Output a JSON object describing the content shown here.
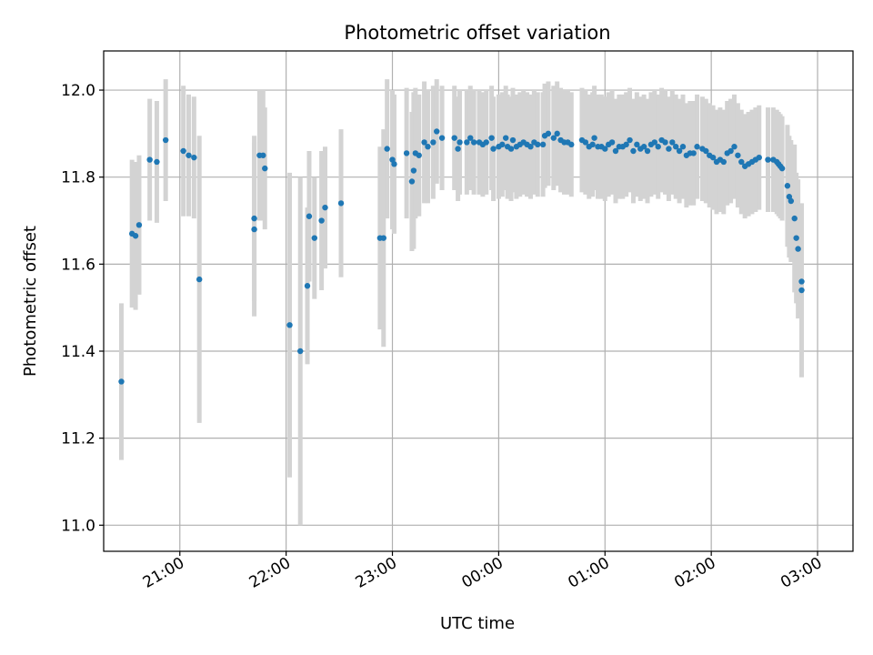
{
  "chart_data": {
    "type": "scatter",
    "title": "Photometric offset variation",
    "xlabel": "UTC time",
    "ylabel": "Photometric offset",
    "x_ticks": [
      "21:00",
      "22:00",
      "23:00",
      "00:00",
      "01:00",
      "02:00",
      "03:00"
    ],
    "x_tick_hours": [
      21,
      22,
      23,
      24,
      25,
      26,
      27
    ],
    "y_ticks": [
      "11.0",
      "11.2",
      "11.4",
      "11.6",
      "11.8",
      "12.0"
    ],
    "y_tick_values": [
      11.0,
      11.2,
      11.4,
      11.6,
      11.8,
      12.0
    ],
    "xlim": [
      "20:17",
      "03:20"
    ],
    "ylim": [
      10.94,
      12.09
    ],
    "grid": true,
    "colors": {
      "point": "#1f77b4",
      "errorbar": "#d3d3d3",
      "grid": "#b0b0b0"
    },
    "points": [
      {
        "t": "20:27",
        "y": 11.33,
        "e": 0.18
      },
      {
        "t": "20:33",
        "y": 11.67,
        "e": 0.17
      },
      {
        "t": "20:35",
        "y": 11.665,
        "e": 0.17
      },
      {
        "t": "20:37",
        "y": 11.69,
        "e": 0.16
      },
      {
        "t": "20:43",
        "y": 11.84,
        "e": 0.14
      },
      {
        "t": "20:47",
        "y": 11.835,
        "e": 0.14
      },
      {
        "t": "20:52",
        "y": 11.885,
        "e": 0.14
      },
      {
        "t": "21:02",
        "y": 11.86,
        "e": 0.15
      },
      {
        "t": "21:05",
        "y": 11.85,
        "e": 0.14
      },
      {
        "t": "21:08",
        "y": 11.845,
        "e": 0.14
      },
      {
        "t": "21:11",
        "y": 11.565,
        "e": 0.33
      },
      {
        "t": "21:42",
        "y": 11.68,
        "e": 0.2
      },
      {
        "t": "21:42",
        "y": 11.705,
        "e": 0.19
      },
      {
        "t": "21:45",
        "y": 11.85,
        "e": 0.15
      },
      {
        "t": "21:47",
        "y": 11.85,
        "e": 0.15
      },
      {
        "t": "21:48",
        "y": 11.82,
        "e": 0.14
      },
      {
        "t": "22:02",
        "y": 11.46,
        "e": 0.35
      },
      {
        "t": "22:08",
        "y": 11.4,
        "e": 0.4
      },
      {
        "t": "22:12",
        "y": 11.55,
        "e": 0.18
      },
      {
        "t": "22:13",
        "y": 11.71,
        "e": 0.15
      },
      {
        "t": "22:16",
        "y": 11.66,
        "e": 0.14
      },
      {
        "t": "22:20",
        "y": 11.7,
        "e": 0.16
      },
      {
        "t": "22:22",
        "y": 11.73,
        "e": 0.14
      },
      {
        "t": "22:31",
        "y": 11.74,
        "e": 0.17
      },
      {
        "t": "22:53",
        "y": 11.66,
        "e": 0.21
      },
      {
        "t": "22:55",
        "y": 11.66,
        "e": 0.25
      },
      {
        "t": "22:57",
        "y": 11.865,
        "e": 0.16
      },
      {
        "t": "23:00",
        "y": 11.84,
        "e": 0.16
      },
      {
        "t": "23:01",
        "y": 11.83,
        "e": 0.16
      },
      {
        "t": "23:08",
        "y": 11.855,
        "e": 0.15
      },
      {
        "t": "23:11",
        "y": 11.79,
        "e": 0.16
      },
      {
        "t": "23:12",
        "y": 11.815,
        "e": 0.18
      },
      {
        "t": "23:13",
        "y": 11.855,
        "e": 0.15
      },
      {
        "t": "23:15",
        "y": 11.85,
        "e": 0.14
      },
      {
        "t": "23:18",
        "y": 11.88,
        "e": 0.14
      },
      {
        "t": "23:20",
        "y": 11.87,
        "e": 0.13
      },
      {
        "t": "23:23",
        "y": 11.88,
        "e": 0.13
      },
      {
        "t": "23:25",
        "y": 11.905,
        "e": 0.12
      },
      {
        "t": "23:28",
        "y": 11.89,
        "e": 0.12
      },
      {
        "t": "23:35",
        "y": 11.89,
        "e": 0.12
      },
      {
        "t": "23:37",
        "y": 11.865,
        "e": 0.12
      },
      {
        "t": "23:38",
        "y": 11.88,
        "e": 0.12
      },
      {
        "t": "23:42",
        "y": 11.88,
        "e": 0.12
      },
      {
        "t": "23:44",
        "y": 11.89,
        "e": 0.12
      },
      {
        "t": "23:46",
        "y": 11.88,
        "e": 0.12
      },
      {
        "t": "23:49",
        "y": 11.88,
        "e": 0.12
      },
      {
        "t": "23:51",
        "y": 11.875,
        "e": 0.12
      },
      {
        "t": "23:53",
        "y": 11.88,
        "e": 0.12
      },
      {
        "t": "23:56",
        "y": 11.89,
        "e": 0.12
      },
      {
        "t": "23:57",
        "y": 11.865,
        "e": 0.12
      },
      {
        "t": "00:00",
        "y": 11.87,
        "e": 0.12
      },
      {
        "t": "00:02",
        "y": 11.875,
        "e": 0.12
      },
      {
        "t": "00:04",
        "y": 11.89,
        "e": 0.12
      },
      {
        "t": "00:05",
        "y": 11.87,
        "e": 0.12
      },
      {
        "t": "00:07",
        "y": 11.865,
        "e": 0.12
      },
      {
        "t": "00:08",
        "y": 11.885,
        "e": 0.12
      },
      {
        "t": "00:10",
        "y": 11.87,
        "e": 0.12
      },
      {
        "t": "00:12",
        "y": 11.875,
        "e": 0.12
      },
      {
        "t": "00:14",
        "y": 11.88,
        "e": 0.12
      },
      {
        "t": "00:16",
        "y": 11.875,
        "e": 0.12
      },
      {
        "t": "00:18",
        "y": 11.87,
        "e": 0.12
      },
      {
        "t": "00:20",
        "y": 11.88,
        "e": 0.12
      },
      {
        "t": "00:22",
        "y": 11.875,
        "e": 0.12
      },
      {
        "t": "00:25",
        "y": 11.875,
        "e": 0.12
      },
      {
        "t": "00:26",
        "y": 11.895,
        "e": 0.12
      },
      {
        "t": "00:28",
        "y": 11.9,
        "e": 0.12
      },
      {
        "t": "00:31",
        "y": 11.89,
        "e": 0.12
      },
      {
        "t": "00:33",
        "y": 11.9,
        "e": 0.12
      },
      {
        "t": "00:35",
        "y": 11.885,
        "e": 0.12
      },
      {
        "t": "00:37",
        "y": 11.88,
        "e": 0.12
      },
      {
        "t": "00:39",
        "y": 11.88,
        "e": 0.12
      },
      {
        "t": "00:41",
        "y": 11.875,
        "e": 0.12
      },
      {
        "t": "00:47",
        "y": 11.885,
        "e": 0.12
      },
      {
        "t": "00:49",
        "y": 11.88,
        "e": 0.12
      },
      {
        "t": "00:51",
        "y": 11.87,
        "e": 0.12
      },
      {
        "t": "00:53",
        "y": 11.875,
        "e": 0.12
      },
      {
        "t": "00:54",
        "y": 11.89,
        "e": 0.12
      },
      {
        "t": "00:56",
        "y": 11.87,
        "e": 0.12
      },
      {
        "t": "00:58",
        "y": 11.87,
        "e": 0.12
      },
      {
        "t": "01:00",
        "y": 11.865,
        "e": 0.12
      },
      {
        "t": "01:02",
        "y": 11.875,
        "e": 0.12
      },
      {
        "t": "01:04",
        "y": 11.88,
        "e": 0.12
      },
      {
        "t": "01:06",
        "y": 11.86,
        "e": 0.12
      },
      {
        "t": "01:08",
        "y": 11.87,
        "e": 0.12
      },
      {
        "t": "01:10",
        "y": 11.87,
        "e": 0.12
      },
      {
        "t": "01:12",
        "y": 11.875,
        "e": 0.12
      },
      {
        "t": "01:14",
        "y": 11.885,
        "e": 0.12
      },
      {
        "t": "01:16",
        "y": 11.86,
        "e": 0.12
      },
      {
        "t": "01:18",
        "y": 11.875,
        "e": 0.12
      },
      {
        "t": "01:20",
        "y": 11.865,
        "e": 0.12
      },
      {
        "t": "01:22",
        "y": 11.87,
        "e": 0.12
      },
      {
        "t": "01:24",
        "y": 11.86,
        "e": 0.12
      },
      {
        "t": "01:26",
        "y": 11.875,
        "e": 0.12
      },
      {
        "t": "01:28",
        "y": 11.88,
        "e": 0.12
      },
      {
        "t": "01:30",
        "y": 11.87,
        "e": 0.12
      },
      {
        "t": "01:32",
        "y": 11.885,
        "e": 0.12
      },
      {
        "t": "01:34",
        "y": 11.88,
        "e": 0.12
      },
      {
        "t": "01:36",
        "y": 11.865,
        "e": 0.12
      },
      {
        "t": "01:38",
        "y": 11.88,
        "e": 0.12
      },
      {
        "t": "01:40",
        "y": 11.87,
        "e": 0.12
      },
      {
        "t": "01:42",
        "y": 11.86,
        "e": 0.12
      },
      {
        "t": "01:44",
        "y": 11.87,
        "e": 0.12
      },
      {
        "t": "01:46",
        "y": 11.85,
        "e": 0.12
      },
      {
        "t": "01:48",
        "y": 11.855,
        "e": 0.12
      },
      {
        "t": "01:50",
        "y": 11.855,
        "e": 0.12
      },
      {
        "t": "01:52",
        "y": 11.87,
        "e": 0.12
      },
      {
        "t": "01:55",
        "y": 11.865,
        "e": 0.12
      },
      {
        "t": "01:57",
        "y": 11.86,
        "e": 0.12
      },
      {
        "t": "01:59",
        "y": 11.85,
        "e": 0.12
      },
      {
        "t": "02:01",
        "y": 11.845,
        "e": 0.12
      },
      {
        "t": "02:03",
        "y": 11.835,
        "e": 0.12
      },
      {
        "t": "02:05",
        "y": 11.84,
        "e": 0.12
      },
      {
        "t": "02:07",
        "y": 11.835,
        "e": 0.12
      },
      {
        "t": "02:09",
        "y": 11.855,
        "e": 0.12
      },
      {
        "t": "02:11",
        "y": 11.86,
        "e": 0.12
      },
      {
        "t": "02:13",
        "y": 11.87,
        "e": 0.12
      },
      {
        "t": "02:15",
        "y": 11.85,
        "e": 0.12
      },
      {
        "t": "02:17",
        "y": 11.835,
        "e": 0.12
      },
      {
        "t": "02:19",
        "y": 11.825,
        "e": 0.12
      },
      {
        "t": "02:21",
        "y": 11.83,
        "e": 0.12
      },
      {
        "t": "02:23",
        "y": 11.835,
        "e": 0.12
      },
      {
        "t": "02:25",
        "y": 11.84,
        "e": 0.12
      },
      {
        "t": "02:27",
        "y": 11.845,
        "e": 0.12
      },
      {
        "t": "02:32",
        "y": 11.84,
        "e": 0.12
      },
      {
        "t": "02:35",
        "y": 11.84,
        "e": 0.12
      },
      {
        "t": "02:37",
        "y": 11.835,
        "e": 0.12
      },
      {
        "t": "02:38",
        "y": 11.83,
        "e": 0.12
      },
      {
        "t": "02:39",
        "y": 11.825,
        "e": 0.12
      },
      {
        "t": "02:40",
        "y": 11.82,
        "e": 0.12
      },
      {
        "t": "02:43",
        "y": 11.78,
        "e": 0.14
      },
      {
        "t": "02:44",
        "y": 11.755,
        "e": 0.14
      },
      {
        "t": "02:45",
        "y": 11.745,
        "e": 0.14
      },
      {
        "t": "02:47",
        "y": 11.705,
        "e": 0.17
      },
      {
        "t": "02:48",
        "y": 11.66,
        "e": 0.15
      },
      {
        "t": "02:49",
        "y": 11.635,
        "e": 0.16
      },
      {
        "t": "02:51",
        "y": 11.56,
        "e": 0.17
      },
      {
        "t": "02:51",
        "y": 11.54,
        "e": 0.2
      }
    ]
  }
}
